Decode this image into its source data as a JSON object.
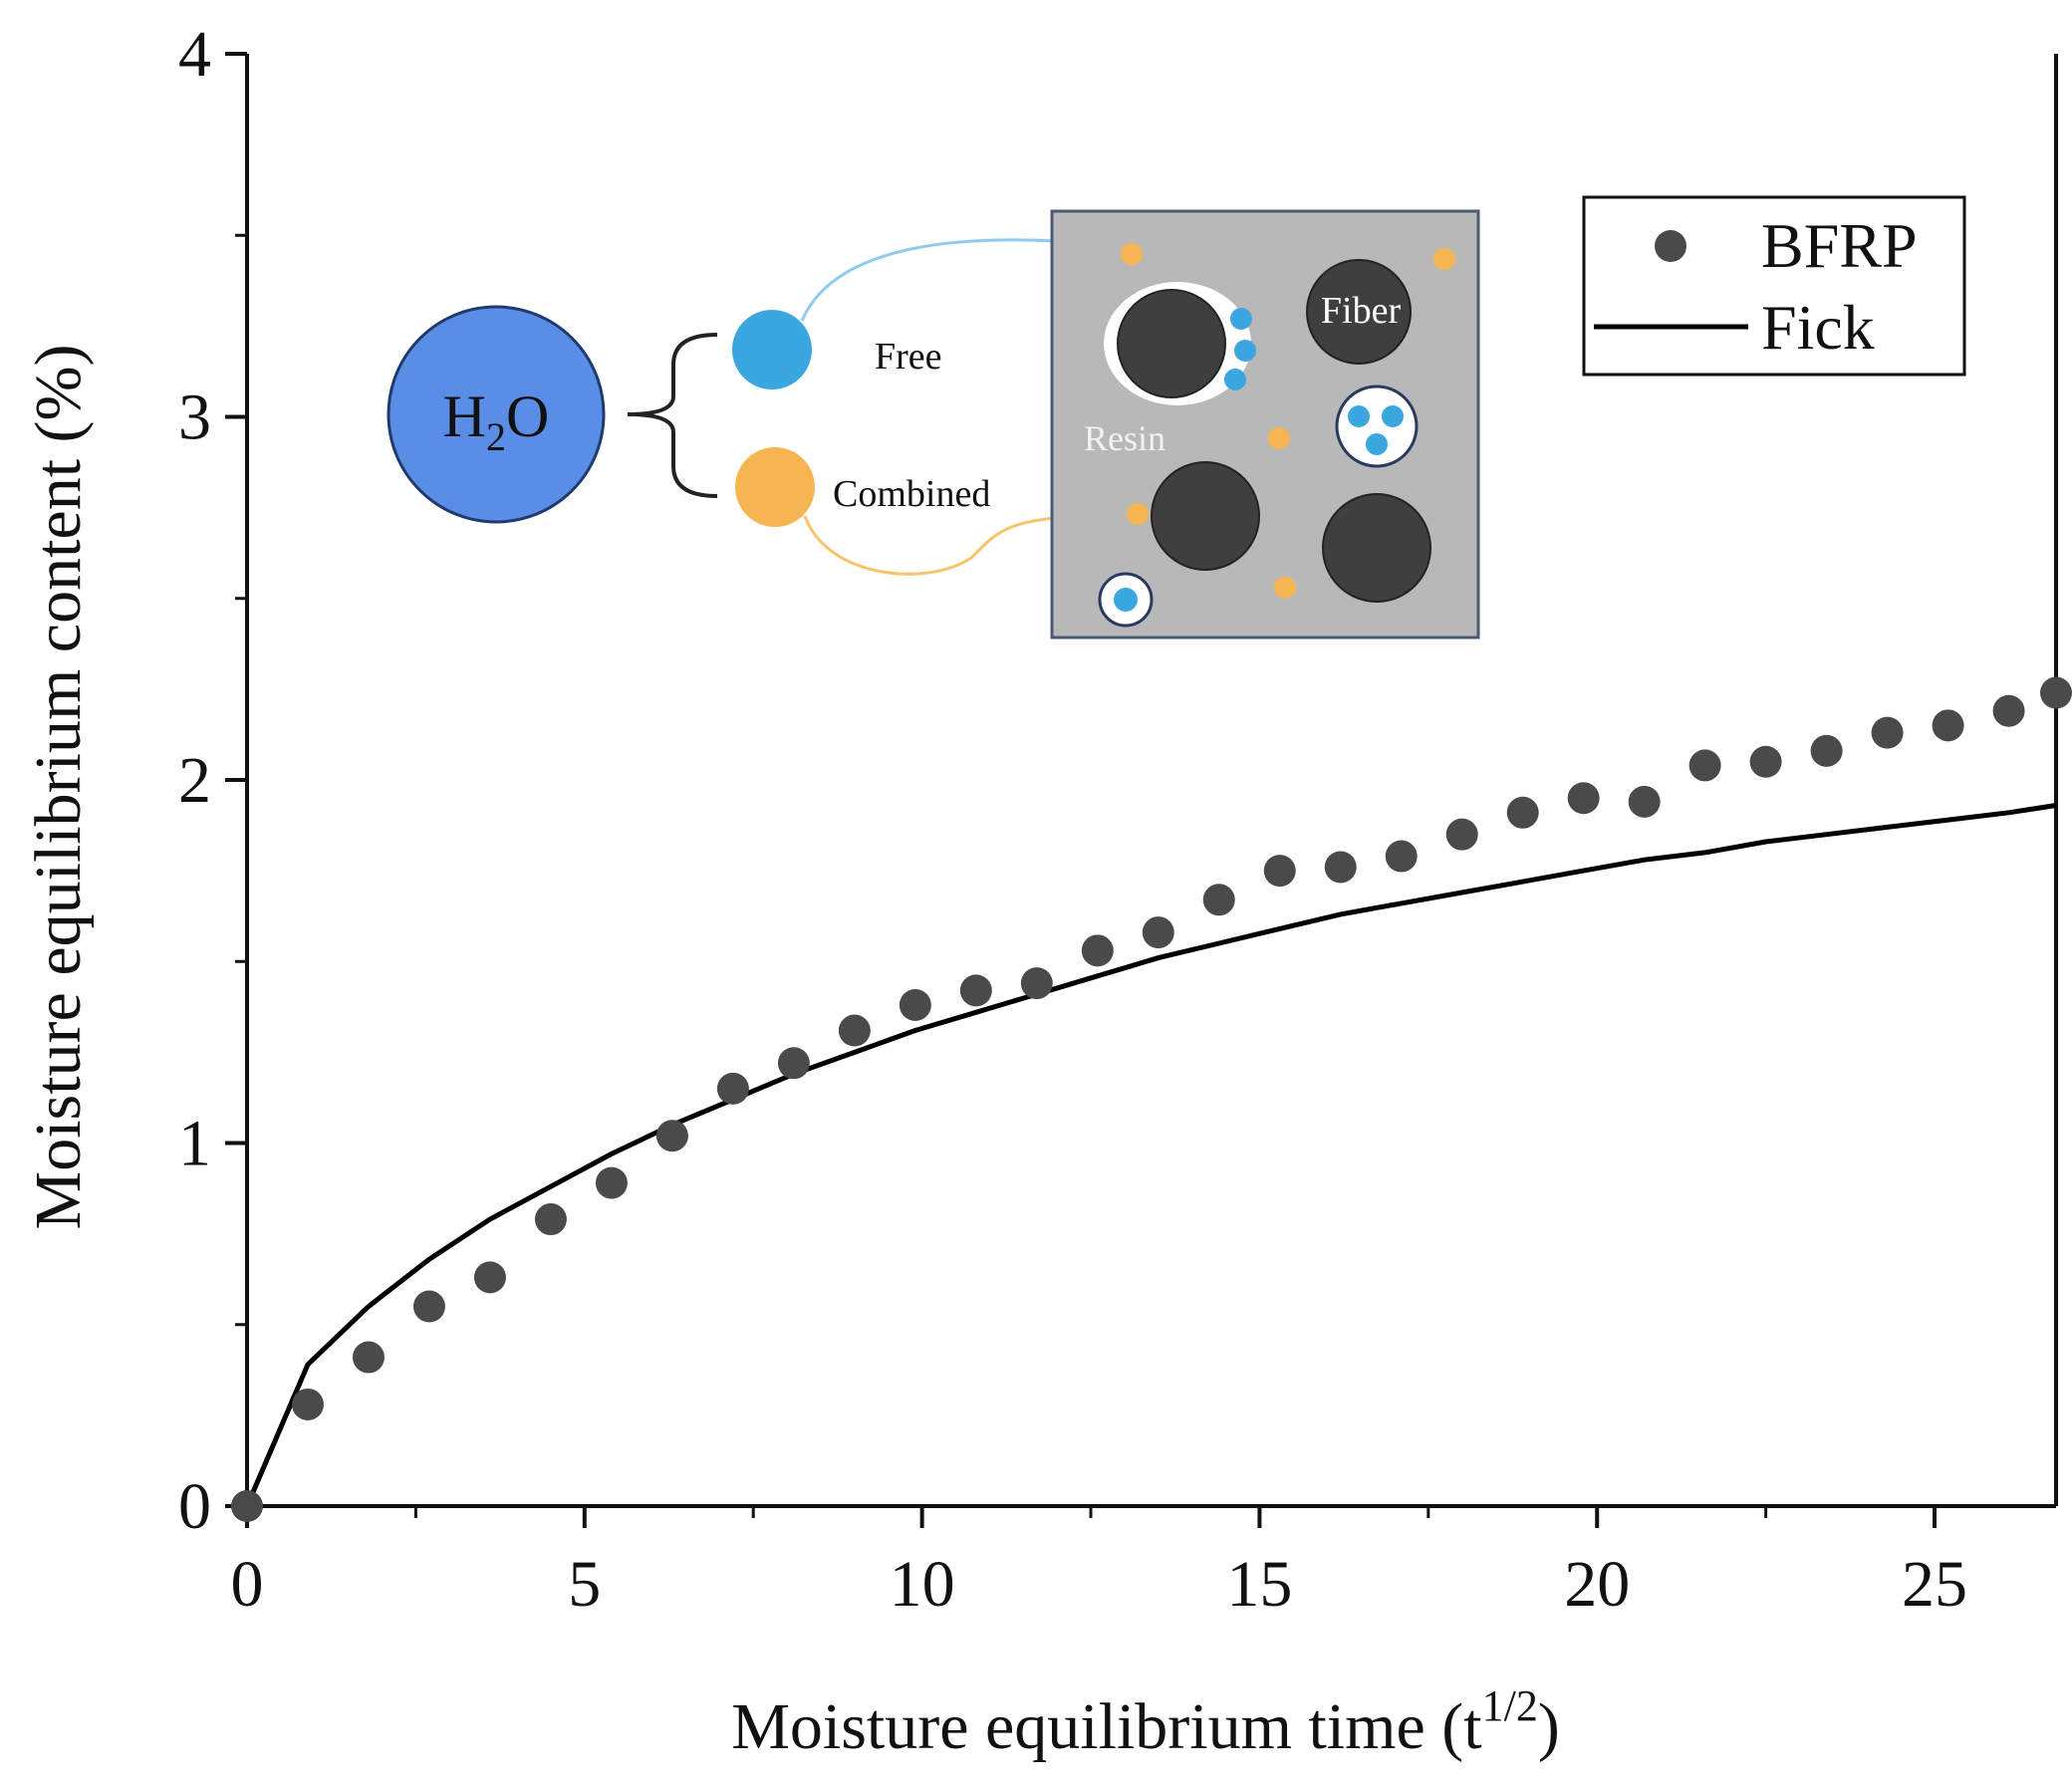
{
  "chart_data": {
    "type": "scatter",
    "title": "",
    "xlabel": "Moisture equilibrium time (t",
    "xlabel_superscript": "1/2",
    "xlabel_close": ")",
    "ylabel": "Moisture equilibrium content (%)",
    "xlim": [
      0,
      26.8
    ],
    "ylim": [
      0,
      4
    ],
    "xticks": [
      0,
      5,
      10,
      15,
      20,
      25
    ],
    "yticks": [
      0,
      1,
      2,
      3,
      4
    ],
    "xtick_labels": [
      "0",
      "5",
      "10",
      "15",
      "20",
      "25"
    ],
    "ytick_labels": [
      "0",
      "1",
      "2",
      "3",
      "4"
    ],
    "grid": false,
    "legend_position": "top-right",
    "series": [
      {
        "name": "BFRP",
        "kind": "scatter",
        "color": "#4a4a4a",
        "x": [
          0,
          0.9,
          1.8,
          2.7,
          3.6,
          4.5,
          5.4,
          6.3,
          7.2,
          8.1,
          9.0,
          9.9,
          10.8,
          11.7,
          12.6,
          13.5,
          14.4,
          15.3,
          16.2,
          17.1,
          18.0,
          18.9,
          19.8,
          20.7,
          21.6,
          22.5,
          23.4,
          24.3,
          25.2,
          26.1,
          26.8
        ],
        "y": [
          0,
          0.28,
          0.41,
          0.55,
          0.63,
          0.79,
          0.89,
          1.02,
          1.15,
          1.22,
          1.31,
          1.38,
          1.42,
          1.44,
          1.53,
          1.58,
          1.67,
          1.75,
          1.76,
          1.79,
          1.85,
          1.91,
          1.95,
          1.94,
          2.04,
          2.05,
          2.08,
          2.13,
          2.15,
          2.19,
          2.24
        ]
      },
      {
        "name": "Fick",
        "kind": "line",
        "color": "#000000",
        "x": [
          0,
          0.9,
          1.8,
          2.7,
          3.6,
          4.5,
          5.4,
          6.3,
          7.2,
          8.1,
          9.0,
          9.9,
          10.8,
          11.7,
          12.6,
          13.5,
          14.4,
          15.3,
          16.2,
          17.1,
          18.0,
          18.9,
          19.8,
          20.7,
          21.6,
          22.5,
          23.4,
          24.3,
          25.2,
          26.1,
          26.8
        ],
        "y": [
          0,
          0.39,
          0.55,
          0.68,
          0.79,
          0.88,
          0.97,
          1.05,
          1.12,
          1.19,
          1.25,
          1.31,
          1.36,
          1.41,
          1.46,
          1.51,
          1.55,
          1.59,
          1.63,
          1.66,
          1.69,
          1.72,
          1.75,
          1.78,
          1.8,
          1.83,
          1.85,
          1.87,
          1.89,
          1.91,
          1.93
        ]
      }
    ],
    "inset": {
      "water_label": "H",
      "water_sub": "2",
      "water_label_end": "O",
      "free_label": "Free",
      "combined_label": "Combined",
      "fiber_label": "Fiber",
      "resin_label": "Resin",
      "water_color": "#5a8ee6",
      "free_color": "#3aa7e0",
      "combined_color": "#f7b552",
      "fiber_color": "#3f3f3f",
      "resin_bg": "#b8b8b8"
    }
  }
}
